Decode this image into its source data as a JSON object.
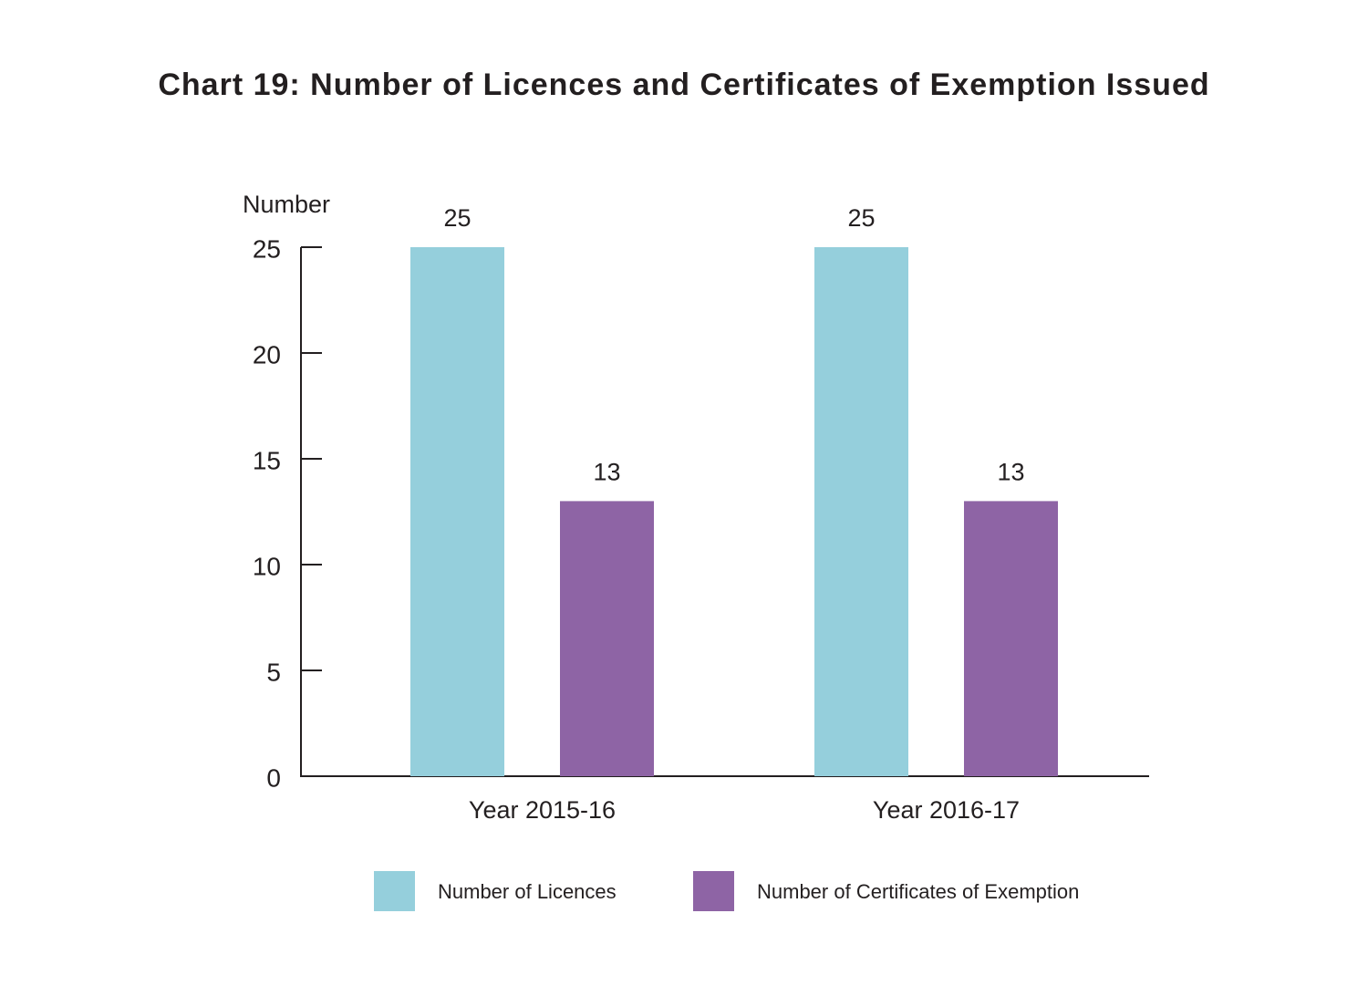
{
  "chart_data": {
    "type": "bar",
    "title": "Chart 19: Number of Licences and Certificates of Exemption Issued",
    "y_label": "Number",
    "categories": [
      "Year 2015-16",
      "Year 2016-17"
    ],
    "series": [
      {
        "name": "Number of Licences",
        "color": "#95cfdc",
        "values": [
          25,
          25
        ]
      },
      {
        "name": "Number of Certificates of Exemption",
        "color": "#8e64a5",
        "values": [
          13,
          13
        ]
      }
    ],
    "ylim": [
      0,
      25
    ],
    "yticks": [
      0,
      5,
      10,
      15,
      20,
      25
    ],
    "grid": false
  }
}
